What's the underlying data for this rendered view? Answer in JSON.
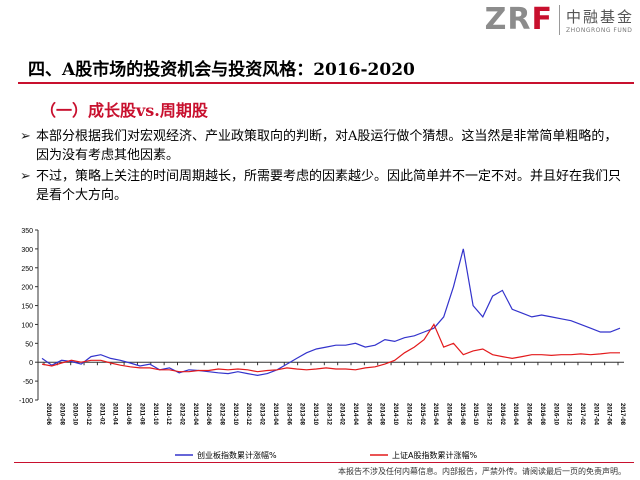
{
  "logo": {
    "mark_a": "ZR",
    "mark_b": "F",
    "cn": "中融基金",
    "en": "ZHONGRONG FUND"
  },
  "title": "四、A股市场的投资机会与投资风格：2016-2020",
  "subtitle": "（一）成长股vs.周期股",
  "bullets": [
    {
      "mark": "➢",
      "text": "本部分根据我们对宏观经济、产业政策取向的判断，对A股运行做个猜想。这当然是非常简单粗略的，因为没有考虑其他因素。"
    },
    {
      "mark": "➢",
      "text": "不过，策略上关注的时间周期越长，所需要考虑的因素越少。因此简单并不一定不对。并且好在我们只是看个大方向。"
    }
  ],
  "footer": "本报告不涉及任何内幕信息。内部报告，严禁外传。请阅读最后一页的免责声明。",
  "chart_data": {
    "type": "line",
    "title": "",
    "xlabel": "",
    "ylabel": "",
    "ylim": [
      -100,
      350
    ],
    "yticks": [
      -100,
      -50,
      0,
      50,
      100,
      150,
      200,
      250,
      300,
      350
    ],
    "grid": false,
    "legend_position": "bottom",
    "x_tick_labels": [
      "2010-06",
      "2010-08",
      "2010-10",
      "2010-12",
      "2011-02",
      "2011-04",
      "2011-06",
      "2011-08",
      "2011-10",
      "2011-12",
      "2012-02",
      "2012-04",
      "2012-06",
      "2012-08",
      "2012-10",
      "2012-12",
      "2013-02",
      "2013-04",
      "2013-06",
      "2013-08",
      "2013-10",
      "2013-12",
      "2014-02",
      "2014-04",
      "2014-06",
      "2014-08",
      "2014-10",
      "2014-12",
      "2015-02",
      "2015-04",
      "2015-06",
      "2015-08",
      "2015-10",
      "2015-12",
      "2016-02",
      "2016-04",
      "2016-06",
      "2016-08",
      "2016-10",
      "2016-12",
      "2017-02",
      "2017-04",
      "2017-06",
      "2017-08"
    ],
    "series": [
      {
        "name": "创业板指数累计涨幅%",
        "color": "#3333cc",
        "values": [
          10,
          -8,
          5,
          2,
          -5,
          15,
          20,
          10,
          5,
          -2,
          -10,
          -5,
          -20,
          -15,
          -28,
          -20,
          -22,
          -25,
          -28,
          -30,
          -25,
          -30,
          -35,
          -30,
          -20,
          -5,
          10,
          25,
          35,
          40,
          45,
          45,
          50,
          40,
          45,
          60,
          55,
          65,
          70,
          80,
          90,
          120,
          200,
          300,
          150,
          120,
          175,
          190,
          140,
          130,
          120,
          125,
          120,
          115,
          110,
          100,
          90,
          80,
          80,
          90
        ]
      },
      {
        "name": "上证A股指数累计涨幅%",
        "color": "#e31a1c",
        "values": [
          -5,
          -10,
          -2,
          5,
          0,
          5,
          5,
          -2,
          -8,
          -12,
          -15,
          -15,
          -20,
          -20,
          -25,
          -25,
          -22,
          -22,
          -18,
          -20,
          -18,
          -20,
          -25,
          -22,
          -20,
          -15,
          -18,
          -20,
          -18,
          -15,
          -18,
          -18,
          -20,
          -15,
          -12,
          -5,
          5,
          25,
          40,
          60,
          100,
          40,
          50,
          20,
          30,
          35,
          20,
          15,
          10,
          15,
          20,
          20,
          18,
          20,
          20,
          22,
          20,
          22,
          25,
          25
        ]
      }
    ]
  }
}
